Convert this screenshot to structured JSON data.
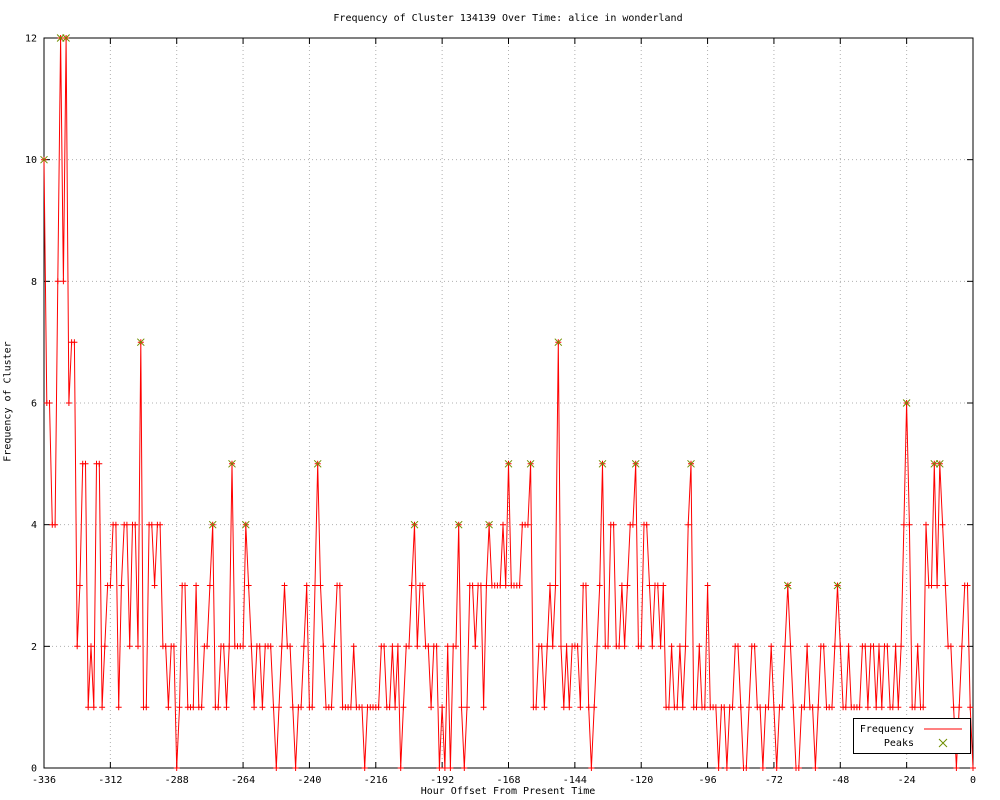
{
  "chart_data": {
    "type": "line",
    "title": "Frequency of Cluster 134139 Over Time: alice in wonderland",
    "xlabel": "Hour Offset From Present Time",
    "ylabel": "Frequency of Cluster",
    "xlim": [
      -336,
      0
    ],
    "ylim": [
      0,
      12
    ],
    "xticks": [
      -336,
      -312,
      -288,
      -264,
      -240,
      -216,
      -192,
      -168,
      -144,
      -120,
      -96,
      -72,
      -48,
      -24,
      0
    ],
    "yticks": [
      0,
      2,
      4,
      6,
      8,
      10,
      12
    ],
    "grid": true,
    "legend_position": "bottom-right",
    "series": [
      {
        "name": "Frequency",
        "style": "line-with-plus-markers",
        "color": "#ff0000",
        "x_start": -336,
        "x_step": 1,
        "values": [
          10,
          6,
          6,
          4,
          4,
          8,
          12,
          8,
          12,
          6,
          7,
          7,
          2,
          3,
          5,
          5,
          1,
          2,
          1,
          5,
          5,
          1,
          2,
          3,
          3,
          4,
          4,
          1,
          3,
          4,
          4,
          2,
          4,
          4,
          2,
          7,
          1,
          1,
          4,
          4,
          3,
          4,
          4,
          2,
          2,
          1,
          2,
          2,
          0,
          1,
          3,
          3,
          1,
          1,
          1,
          3,
          1,
          1,
          2,
          2,
          3,
          4,
          1,
          1,
          2,
          2,
          1,
          2,
          5,
          2,
          2,
          2,
          2,
          4,
          3,
          2,
          1,
          2,
          2,
          1,
          2,
          2,
          2,
          1,
          0,
          1,
          2,
          3,
          2,
          2,
          1,
          0,
          1,
          1,
          2,
          3,
          1,
          1,
          3,
          5,
          3,
          2,
          1,
          1,
          1,
          2,
          3,
          3,
          1,
          1,
          1,
          1,
          2,
          1,
          1,
          1,
          0,
          1,
          1,
          1,
          1,
          1,
          2,
          2,
          1,
          1,
          2,
          1,
          2,
          0,
          1,
          2,
          2,
          3,
          4,
          2,
          3,
          3,
          2,
          2,
          1,
          2,
          2,
          0,
          1,
          0,
          2,
          0,
          2,
          2,
          4,
          1,
          0,
          1,
          3,
          3,
          2,
          3,
          3,
          1,
          3,
          4,
          3,
          3,
          3,
          3,
          4,
          3,
          5,
          3,
          3,
          3,
          3,
          4,
          4,
          4,
          5,
          1,
          1,
          2,
          2,
          1,
          2,
          3,
          2,
          3,
          7,
          2,
          1,
          2,
          1,
          2,
          2,
          2,
          1,
          3,
          3,
          1,
          0,
          1,
          2,
          3,
          5,
          2,
          2,
          4,
          4,
          2,
          2,
          3,
          2,
          3,
          4,
          4,
          5,
          2,
          2,
          4,
          4,
          3,
          2,
          3,
          3,
          2,
          3,
          1,
          1,
          2,
          1,
          1,
          2,
          1,
          2,
          4,
          5,
          1,
          1,
          2,
          1,
          1,
          3,
          1,
          1,
          1,
          0,
          1,
          1,
          0,
          1,
          1,
          2,
          2,
          1,
          0,
          0,
          1,
          2,
          2,
          1,
          1,
          0,
          1,
          1,
          2,
          1,
          0,
          1,
          1,
          2,
          3,
          2,
          1,
          0,
          0,
          1,
          1,
          2,
          1,
          1,
          0,
          1,
          2,
          2,
          1,
          1,
          1,
          2,
          3,
          2,
          1,
          1,
          2,
          1,
          1,
          1,
          1,
          2,
          2,
          1,
          2,
          2,
          1,
          2,
          1,
          2,
          2,
          1,
          1,
          2,
          1,
          2,
          4,
          6,
          4,
          1,
          1,
          2,
          1,
          1,
          4,
          3,
          3,
          5,
          3,
          5,
          4,
          3,
          2,
          2,
          1,
          0,
          1,
          2,
          3,
          3,
          1,
          0
        ]
      },
      {
        "name": "Peaks",
        "style": "x-markers",
        "color": "#6f8f00",
        "points": [
          [
            -336,
            10
          ],
          [
            -330,
            12
          ],
          [
            -328,
            12
          ],
          [
            -301,
            7
          ],
          [
            -275,
            4
          ],
          [
            -268,
            5
          ],
          [
            -263,
            4
          ],
          [
            -237,
            5
          ],
          [
            -202,
            4
          ],
          [
            -186,
            4
          ],
          [
            -175,
            4
          ],
          [
            -168,
            5
          ],
          [
            -160,
            5
          ],
          [
            -150,
            7
          ],
          [
            -134,
            5
          ],
          [
            -122,
            5
          ],
          [
            -102,
            5
          ],
          [
            -67,
            3
          ],
          [
            -49,
            3
          ],
          [
            -24,
            6
          ],
          [
            -14,
            5
          ],
          [
            -12,
            5
          ]
        ]
      }
    ],
    "colors": {
      "frequency_line": "#ff0000",
      "peaks_marker": "#6f8f00",
      "grid": "#b0b0b0",
      "axis": "#000000",
      "background": "#ffffff"
    }
  }
}
